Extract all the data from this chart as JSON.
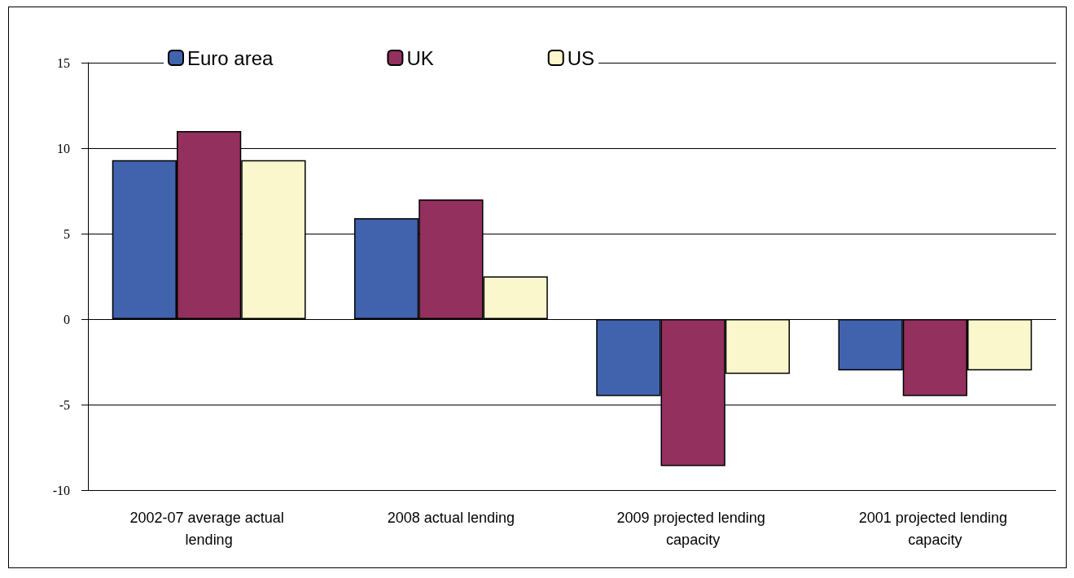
{
  "chart_data": {
    "type": "bar",
    "categories": [
      "2002-07 average actual lending",
      "2008 actual lending",
      "2009 projected lending capacity",
      "2001 projected lending capacity"
    ],
    "series": [
      {
        "name": "Euro area",
        "color": "#4163ae",
        "values": [
          9.3,
          5.9,
          -4.5,
          -3.0
        ]
      },
      {
        "name": "UK",
        "color": "#93305d",
        "values": [
          11.0,
          7.0,
          -8.6,
          -4.5
        ]
      },
      {
        "name": "US",
        "color": "#faf7cd",
        "values": [
          9.3,
          2.5,
          -3.2,
          -3.0
        ]
      }
    ],
    "ylim": [
      -10,
      15
    ],
    "yticks": [
      -10,
      -5,
      0,
      5,
      10,
      15
    ],
    "grid": "y",
    "legend": "top"
  }
}
